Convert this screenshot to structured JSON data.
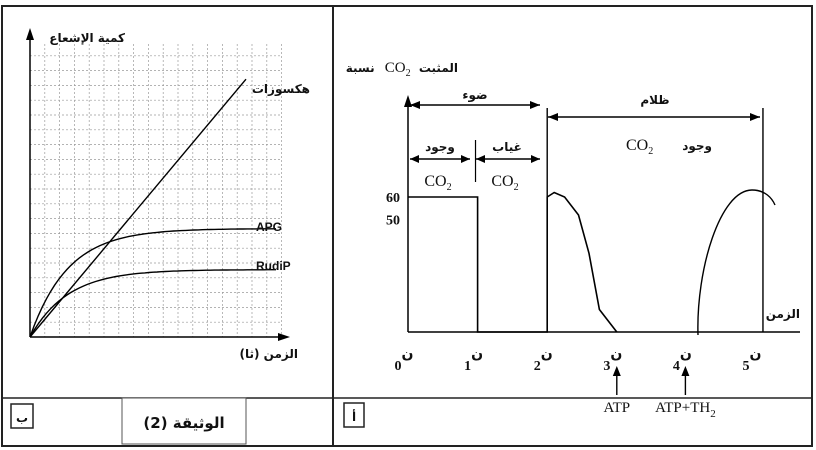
{
  "doc": {
    "caption": "الوثيقة (2)"
  },
  "chart_data": [
    {
      "type": "line",
      "panel_tag": "ب",
      "ylabel": "كمية الإشعاع",
      "xlabel": "الزمن (ثا)",
      "grid": true,
      "series": [
        {
          "name": "هكسوزات",
          "shape": "linear",
          "end_level": 0.88
        },
        {
          "name": "APG",
          "shape": "saturating",
          "plateau": 0.37
        },
        {
          "name": "RudiP",
          "shape": "saturating",
          "plateau": 0.23
        }
      ]
    },
    {
      "type": "line",
      "panel_tag": "أ",
      "ylabel": "نسبة CO2 المثبت",
      "ylabel_parts": {
        "text_before": "نسبة",
        "co2": "CO",
        "sub": "2",
        "text_after": "المثبت"
      },
      "xlabel": "الزمن",
      "x_ticks": [
        {
          "label": "ن",
          "sub": "0",
          "t": 0
        },
        {
          "label": "ن",
          "sub": "1",
          "t": 1
        },
        {
          "label": "ن",
          "sub": "2",
          "t": 2
        },
        {
          "label": "ن",
          "sub": "3",
          "t": 3
        },
        {
          "label": "ن",
          "sub": "4",
          "t": 4
        },
        {
          "label": "ن",
          "sub": "5",
          "t": 5
        }
      ],
      "y_ticks": [
        50,
        60
      ],
      "phases": {
        "light": "ضوء",
        "dark": "ظلام",
        "co2_present": {
          "word": "وجود",
          "co": "CO",
          "sub": "2"
        },
        "co2_absent": {
          "word": "غياب",
          "co": "CO",
          "sub": "2"
        },
        "dark_co2": {
          "word": "وجود",
          "co": "CO",
          "sub": "2"
        }
      },
      "series": [
        {
          "name": "",
          "points": [
            [
              0,
              60
            ],
            [
              1,
              60
            ],
            [
              1,
              0
            ],
            [
              2,
              0
            ],
            [
              2,
              60
            ],
            [
              2.1,
              62
            ],
            [
              2.25,
              60
            ],
            [
              2.45,
              52
            ],
            [
              2.6,
              35
            ],
            [
              2.75,
              10
            ],
            [
              3,
              0
            ]
          ]
        }
      ],
      "annotations": [
        {
          "t": 3,
          "text": "ATP"
        },
        {
          "t": 4,
          "text": "ATP+TH",
          "sub": "2"
        }
      ]
    }
  ]
}
